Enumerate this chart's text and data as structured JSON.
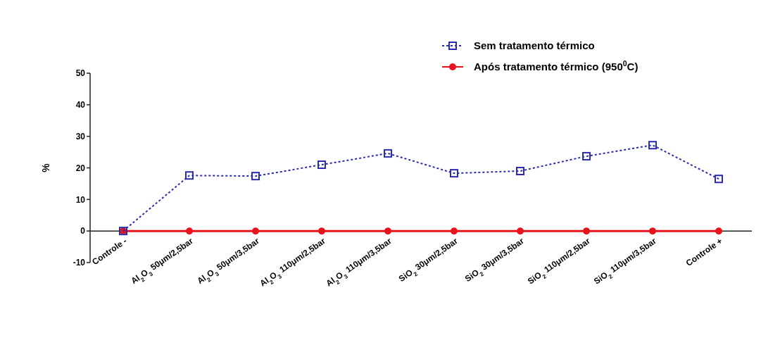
{
  "chart_data": {
    "type": "line",
    "ylabel": "%",
    "categories": [
      "Controle -",
      "Al$_{2}$O$_{3}$ 50μm/2,5bar",
      "Al$_{2}$O$_{3}$ 50μm/3,5bar",
      "Al$_{2}$O$_{3}$ 110μm/2,5bar",
      "Al$_{2}$O$_{3}$ 110μm/3,5bar",
      "SiO$_{2}$ 30μm/2,5bar",
      "SiO$_{2}$ 30μm/3,5bar",
      "SiO$_{2}$ 110μm/2,5bar",
      "SiO$_{2}$ 110μm/3,5bar",
      "Controle +"
    ],
    "series": [
      {
        "name": "Sem tratamento térmico",
        "color": "#2b2bb0",
        "marker": "square",
        "line_style": "dotted",
        "values": [
          0,
          17.6,
          17.4,
          21,
          24.6,
          18.3,
          19,
          23.7,
          27.2,
          16.5
        ]
      },
      {
        "name": "Após tratamento térmico (950$^{0}$C)",
        "color": "#e8141c",
        "marker": "circle",
        "line_style": "solid",
        "values": [
          0,
          0,
          0,
          0,
          0,
          0,
          0,
          0,
          0,
          0
        ]
      }
    ],
    "ylim": [
      -10,
      50
    ],
    "yticks": [
      -10,
      0,
      10,
      20,
      30,
      40,
      50
    ],
    "grid": false,
    "legend": "top right"
  }
}
